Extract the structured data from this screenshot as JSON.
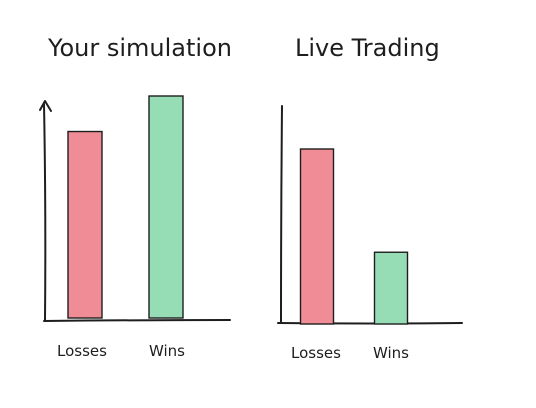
{
  "chart_data": [
    {
      "type": "bar",
      "title": "Your simulation",
      "categories": [
        "Losses",
        "Wins"
      ],
      "values": [
        0.84,
        1.0
      ],
      "ylim": [
        0,
        1
      ],
      "grid": false,
      "colors": [
        "#f08c96",
        "#96dcb4"
      ],
      "stroke": "#1e1e1e"
    },
    {
      "type": "bar",
      "title": "Live Trading",
      "categories": [
        "Losses",
        "Wins"
      ],
      "values": [
        1.0,
        0.41
      ],
      "ylim": [
        0,
        1
      ],
      "grid": false,
      "colors": [
        "#f08c96",
        "#96dcb4"
      ],
      "stroke": "#1e1e1e"
    }
  ]
}
